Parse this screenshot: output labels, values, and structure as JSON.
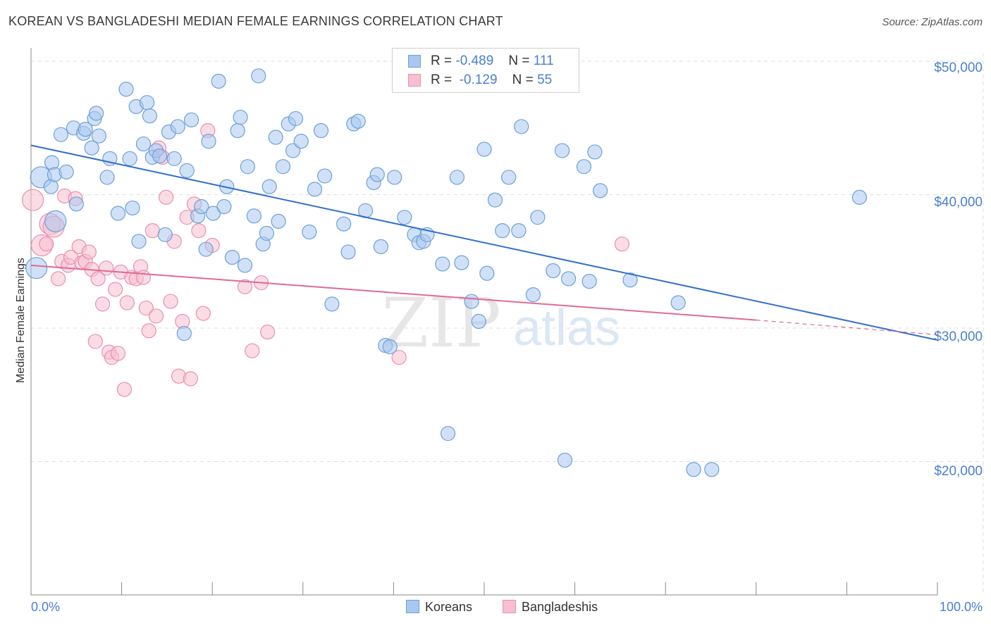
{
  "title": "KOREAN VS BANGLADESHI MEDIAN FEMALE EARNINGS CORRELATION CHART",
  "source": "Source: ZipAtlas.com",
  "watermark": {
    "zip": "ZIP",
    "atlas": "atlas"
  },
  "colors": {
    "korean_fill": "#a9c8f0",
    "korean_stroke": "#6d9fd8",
    "korean_line": "#2f6fcf",
    "bangla_fill": "#f7bfd0",
    "bangla_stroke": "#e98fae",
    "bangla_line": "#e06a96",
    "tick_label": "#4a7fcf",
    "grid": "#dddddd"
  },
  "legend": {
    "rows": [
      {
        "r_label": "R =",
        "r_value": "-0.489",
        "n_label": "N =",
        "n_value": "111"
      },
      {
        "r_label": "R =",
        "r_value": "-0.129",
        "n_label": "N =",
        "n_value": "55"
      }
    ]
  },
  "bottom_legend": {
    "series1": "Koreans",
    "series2": "Bangladeshis"
  },
  "chart_data": {
    "type": "scatter",
    "title": "KOREAN VS BANGLADESHI MEDIAN FEMALE EARNINGS CORRELATION CHART",
    "xlabel": "",
    "ylabel": "Median Female Earnings",
    "xlim": [
      0,
      100
    ],
    "ylim": [
      10000,
      51000
    ],
    "x_tick_labels": [
      "0.0%",
      "100.0%"
    ],
    "y_ticks": [
      {
        "value": 20000,
        "label": "$20,000"
      },
      {
        "value": 30000,
        "label": "$30,000"
      },
      {
        "value": 40000,
        "label": "$40,000"
      },
      {
        "value": 50000,
        "label": "$50,000"
      }
    ],
    "grid": true,
    "series": [
      {
        "name": "Koreans",
        "r": -0.489,
        "n": 111,
        "trend": {
          "x0": 0,
          "y0": 43700,
          "x1": 100,
          "y1": 29100
        },
        "points": [
          [
            2.7,
            38000
          ],
          [
            0.6,
            34500
          ],
          [
            1.1,
            41300
          ],
          [
            2.2,
            40600
          ],
          [
            2.3,
            42400
          ],
          [
            2.6,
            41500
          ],
          [
            3.9,
            41700
          ],
          [
            3.3,
            44500
          ],
          [
            5.0,
            39300
          ],
          [
            4.7,
            45000
          ],
          [
            5.8,
            44600
          ],
          [
            6.0,
            44900
          ],
          [
            7.0,
            45700
          ],
          [
            7.5,
            44400
          ],
          [
            7.2,
            46100
          ],
          [
            6.7,
            43500
          ],
          [
            8.4,
            41300
          ],
          [
            8.7,
            42700
          ],
          [
            9.6,
            38600
          ],
          [
            10.5,
            47900
          ],
          [
            10.9,
            42700
          ],
          [
            11.2,
            39000
          ],
          [
            11.6,
            46600
          ],
          [
            11.9,
            36500
          ],
          [
            12.4,
            43800
          ],
          [
            12.8,
            46900
          ],
          [
            13.1,
            45900
          ],
          [
            13.4,
            42800
          ],
          [
            13.8,
            43300
          ],
          [
            14.2,
            42900
          ],
          [
            14.8,
            37000
          ],
          [
            15.2,
            44700
          ],
          [
            15.8,
            42700
          ],
          [
            16.2,
            45100
          ],
          [
            16.9,
            29600
          ],
          [
            17.2,
            41800
          ],
          [
            17.7,
            45600
          ],
          [
            18.4,
            38400
          ],
          [
            18.8,
            39100
          ],
          [
            19.3,
            35900
          ],
          [
            19.6,
            44000
          ],
          [
            20.1,
            38600
          ],
          [
            20.7,
            48500
          ],
          [
            21.3,
            39100
          ],
          [
            21.6,
            40600
          ],
          [
            22.2,
            35300
          ],
          [
            22.8,
            44800
          ],
          [
            23.1,
            45800
          ],
          [
            23.6,
            34700
          ],
          [
            23.9,
            42100
          ],
          [
            24.6,
            38400
          ],
          [
            25.1,
            48900
          ],
          [
            25.6,
            36300
          ],
          [
            26.0,
            37100
          ],
          [
            26.3,
            40600
          ],
          [
            27.0,
            44300
          ],
          [
            27.3,
            38000
          ],
          [
            27.8,
            42100
          ],
          [
            28.4,
            45300
          ],
          [
            28.9,
            43300
          ],
          [
            29.2,
            45700
          ],
          [
            29.8,
            44000
          ],
          [
            30.7,
            37200
          ],
          [
            31.3,
            40400
          ],
          [
            32.0,
            44800
          ],
          [
            32.4,
            41400
          ],
          [
            33.2,
            31800
          ],
          [
            34.5,
            37800
          ],
          [
            35.0,
            35700
          ],
          [
            35.6,
            45300
          ],
          [
            36.1,
            45500
          ],
          [
            36.9,
            38800
          ],
          [
            37.8,
            40900
          ],
          [
            38.2,
            41500
          ],
          [
            38.6,
            36100
          ],
          [
            39.1,
            28700
          ],
          [
            39.6,
            28600
          ],
          [
            40.1,
            41300
          ],
          [
            41.2,
            38300
          ],
          [
            42.3,
            37000
          ],
          [
            42.8,
            36400
          ],
          [
            43.3,
            36500
          ],
          [
            43.7,
            37000
          ],
          [
            45.4,
            34800
          ],
          [
            46.0,
            22100
          ],
          [
            47.0,
            41300
          ],
          [
            47.5,
            34900
          ],
          [
            48.6,
            32000
          ],
          [
            49.4,
            30500
          ],
          [
            50.0,
            43400
          ],
          [
            50.3,
            34100
          ],
          [
            51.2,
            39600
          ],
          [
            52.0,
            37300
          ],
          [
            52.7,
            41300
          ],
          [
            53.8,
            37300
          ],
          [
            54.1,
            45100
          ],
          [
            55.4,
            32500
          ],
          [
            55.9,
            38300
          ],
          [
            57.6,
            34300
          ],
          [
            58.6,
            43300
          ],
          [
            58.9,
            20100
          ],
          [
            59.3,
            33700
          ],
          [
            61.0,
            42100
          ],
          [
            61.6,
            33500
          ],
          [
            62.2,
            43200
          ],
          [
            62.8,
            40300
          ],
          [
            66.1,
            33600
          ],
          [
            71.4,
            31900
          ],
          [
            73.1,
            19400
          ],
          [
            75.1,
            19400
          ],
          [
            91.4,
            39800
          ]
        ]
      },
      {
        "name": "Bangladeshis",
        "r": -0.129,
        "n": 55,
        "trend": {
          "x0": 0,
          "y0": 34700,
          "x1": 80,
          "y1": 30600
        },
        "dashed_to": {
          "x": 100,
          "y": 29500
        },
        "points": [
          [
            0.2,
            39600
          ],
          [
            1.2,
            36200
          ],
          [
            1.7,
            36300
          ],
          [
            2.1,
            37800
          ],
          [
            2.5,
            37600
          ],
          [
            3.0,
            33700
          ],
          [
            3.4,
            35000
          ],
          [
            3.7,
            39900
          ],
          [
            4.1,
            34700
          ],
          [
            4.4,
            35300
          ],
          [
            4.9,
            39700
          ],
          [
            5.3,
            36100
          ],
          [
            5.6,
            34900
          ],
          [
            6.0,
            35000
          ],
          [
            6.4,
            35700
          ],
          [
            6.7,
            34400
          ],
          [
            7.1,
            29000
          ],
          [
            7.4,
            33700
          ],
          [
            7.9,
            31800
          ],
          [
            8.3,
            34500
          ],
          [
            8.6,
            28200
          ],
          [
            8.9,
            27800
          ],
          [
            9.3,
            32900
          ],
          [
            9.6,
            28100
          ],
          [
            9.9,
            34200
          ],
          [
            10.3,
            25400
          ],
          [
            10.6,
            31900
          ],
          [
            11.1,
            33800
          ],
          [
            11.6,
            33700
          ],
          [
            12.1,
            34600
          ],
          [
            12.4,
            33800
          ],
          [
            12.7,
            31500
          ],
          [
            13.0,
            29800
          ],
          [
            13.4,
            37300
          ],
          [
            13.8,
            30900
          ],
          [
            14.1,
            43500
          ],
          [
            14.5,
            42800
          ],
          [
            14.9,
            39800
          ],
          [
            15.4,
            32000
          ],
          [
            15.8,
            36500
          ],
          [
            16.3,
            26400
          ],
          [
            16.7,
            30500
          ],
          [
            17.2,
            38300
          ],
          [
            17.6,
            26200
          ],
          [
            18.0,
            39300
          ],
          [
            18.5,
            37300
          ],
          [
            19.0,
            31100
          ],
          [
            19.5,
            44800
          ],
          [
            20.0,
            36200
          ],
          [
            23.6,
            33100
          ],
          [
            24.4,
            28300
          ],
          [
            25.4,
            33400
          ],
          [
            26.1,
            29700
          ],
          [
            40.6,
            27800
          ],
          [
            65.2,
            36300
          ]
        ]
      }
    ]
  }
}
